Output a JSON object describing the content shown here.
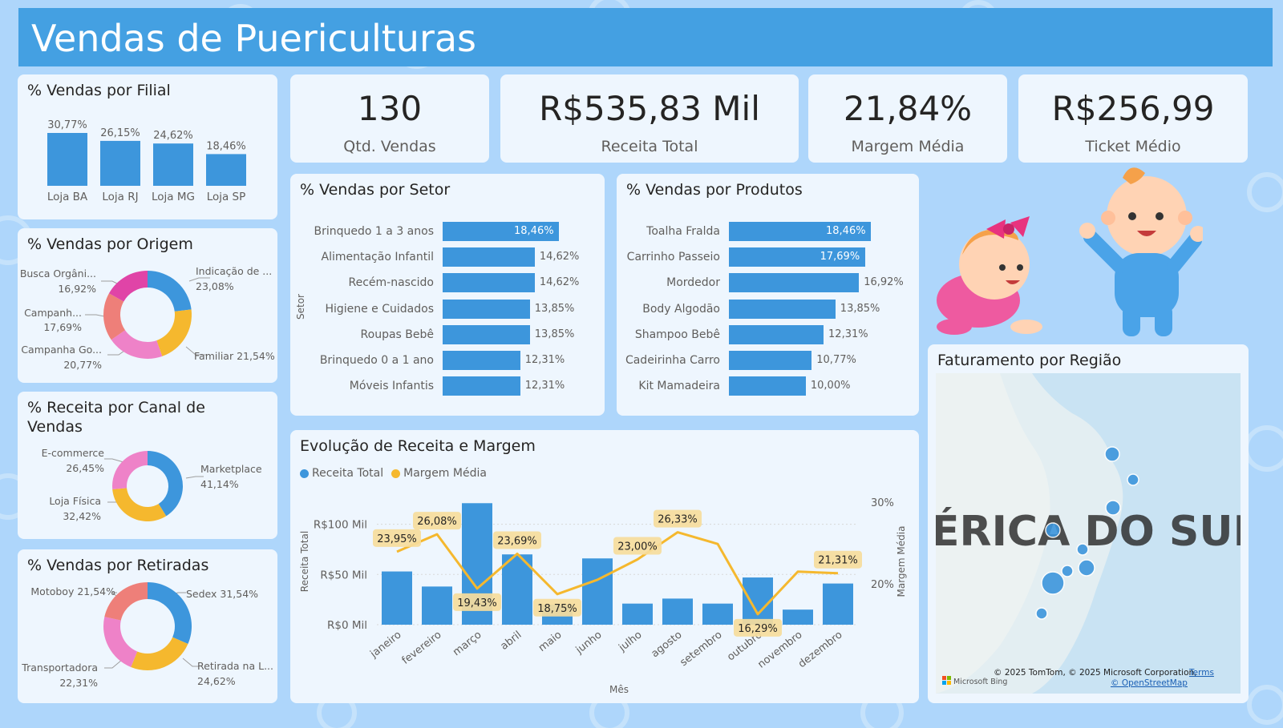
{
  "header": {
    "title": "Vendas de Puericulturas"
  },
  "kpis": [
    {
      "value": "130",
      "label": "Qtd. Vendas"
    },
    {
      "value": "R$535,83 Mil",
      "label": "Receita Total"
    },
    {
      "value": "21,84%",
      "label": "Margem Média"
    },
    {
      "value": "R$256,99",
      "label": "Ticket Médio"
    }
  ],
  "colors": {
    "blue": "#3d96dc",
    "yellow": "#f5b82e",
    "pink": "#ee82c8",
    "salmon": "#ee7f79",
    "magenta": "#e044a7",
    "header": "#44a0e2"
  },
  "filial": {
    "title": "% Vendas por Filial",
    "chart_data": {
      "type": "bar",
      "categories": [
        "Loja BA",
        "Loja RJ",
        "Loja MG",
        "Loja SP"
      ],
      "values": [
        30.77,
        26.15,
        24.62,
        18.46
      ],
      "labels": [
        "30,77%",
        "26,15%",
        "24,62%",
        "18,46%"
      ]
    }
  },
  "origem": {
    "title": "% Vendas por Origem",
    "chart_data": {
      "type": "pie",
      "categories": [
        "Indicação de ...",
        "Familiar",
        "Campanha Go...",
        "Campanh...",
        "Busca Orgâni..."
      ],
      "values": [
        23.08,
        21.54,
        20.77,
        17.69,
        16.92
      ],
      "labels": [
        "23,08%",
        "21,54%",
        "20,77%",
        "17,69%",
        "16,92%"
      ]
    },
    "texts": {
      "l1a": "Indicação de ...",
      "l1b": "23,08%",
      "l2": "Familiar 21,54%",
      "l3a": "Campanha Go...",
      "l3b": "20,77%",
      "l4a": "Campanh...",
      "l4b": "17,69%",
      "l5a": "Busca Orgâni...",
      "l5b": "16,92%"
    }
  },
  "canal": {
    "title": "% Receita por Canal de Vendas",
    "title_l1": "% Receita por Canal de",
    "title_l2": "Vendas",
    "chart_data": {
      "type": "pie",
      "categories": [
        "Marketplace",
        "Loja Física",
        "E-commerce"
      ],
      "values": [
        41.14,
        32.42,
        26.45
      ],
      "labels": [
        "41,14%",
        "32,42%",
        "26,45%"
      ]
    },
    "texts": {
      "l1a": "Marketplace",
      "l1b": "41,14%",
      "l2a": "Loja Física",
      "l2b": "32,42%",
      "l3a": "E-commerce",
      "l3b": "26,45%"
    }
  },
  "retiradas": {
    "title": "% Vendas por Retiradas",
    "chart_data": {
      "type": "pie",
      "categories": [
        "Sedex",
        "Retirada na L...",
        "Transportadora",
        "Motoboy"
      ],
      "values": [
        31.54,
        24.62,
        22.31,
        21.54
      ],
      "labels": [
        "31,54%",
        "24,62%",
        "22,31%",
        "21,54%"
      ]
    },
    "texts": {
      "l1": "Sedex 31,54%",
      "l2a": "Retirada na L...",
      "l2b": "24,62%",
      "l3a": "Transportadora",
      "l3b": "22,31%",
      "l4": "Motoboy 21,54%"
    }
  },
  "setor": {
    "title": "% Vendas por Setor",
    "axis_label": "Setor",
    "chart_data": {
      "type": "bar",
      "categories": [
        "Brinquedo 1 a 3 anos",
        "Alimentação Infantil",
        "Recém-nascido",
        "Higiene e Cuidados",
        "Roupas Bebê",
        "Brinquedo 0 a 1 ano",
        "Móveis Infantis"
      ],
      "values": [
        18.46,
        14.62,
        14.62,
        13.85,
        13.85,
        12.31,
        12.31
      ],
      "labels": [
        "18,46%",
        "14,62%",
        "14,62%",
        "13,85%",
        "13,85%",
        "12,31%",
        "12,31%"
      ]
    }
  },
  "produtos": {
    "title": "% Vendas por Produtos",
    "chart_data": {
      "type": "bar",
      "categories": [
        "Toalha Fralda",
        "Carrinho Passeio",
        "Mordedor",
        "Body Algodão",
        "Shampoo Bebê",
        "Cadeirinha Carro",
        "Kit Mamadeira"
      ],
      "values": [
        18.46,
        17.69,
        16.92,
        13.85,
        12.31,
        10.77,
        10.0
      ],
      "labels": [
        "18,46%",
        "17,69%",
        "16,92%",
        "13,85%",
        "12,31%",
        "10,77%",
        "10,00%"
      ]
    }
  },
  "evolucao": {
    "title": "Evolução de Receita e Margem",
    "legend": [
      "Receita Total",
      "Margem Média"
    ],
    "xlabel": "Mês",
    "ylabel": "Receita Total",
    "y2label": "Margem Média",
    "yticks": [
      "R$0 Mil",
      "R$50 Mil",
      "R$100 Mil"
    ],
    "y2ticks": [
      "20%",
      "30%"
    ],
    "chart_data": {
      "type": "bar",
      "categories": [
        "janeiro",
        "fevereiro",
        "março",
        "abril",
        "maio",
        "junho",
        "julho",
        "agosto",
        "setembro",
        "outubro",
        "novembro",
        "dezembro"
      ],
      "series": [
        {
          "name": "Receita Total",
          "values": [
            53,
            38,
            121,
            70,
            20,
            66,
            21,
            26,
            21,
            47,
            15,
            41
          ]
        },
        {
          "name": "Margem Média",
          "values": [
            23.95,
            26.08,
            19.43,
            23.69,
            18.75,
            20.5,
            23.0,
            26.33,
            24.9,
            16.29,
            21.5,
            21.31
          ]
        }
      ],
      "point_labels": [
        "23,95%",
        "26,08%",
        "19,43%",
        "23,69%",
        "18,75%",
        "",
        "23,00%",
        "26,33%",
        "",
        "16,29%",
        "",
        "21,31%"
      ],
      "ylim": [
        0,
        130
      ],
      "y2lim": [
        15,
        31
      ]
    }
  },
  "mapa": {
    "title": "Faturamento por Região",
    "map_text": "ÉRICA DO SUL",
    "attribution": "© 2025 TomTom, © 2025 Microsoft Corporation,",
    "terms": "Terms",
    "osm": "© OpenStreetMap",
    "bing": "Microsoft Bing"
  }
}
